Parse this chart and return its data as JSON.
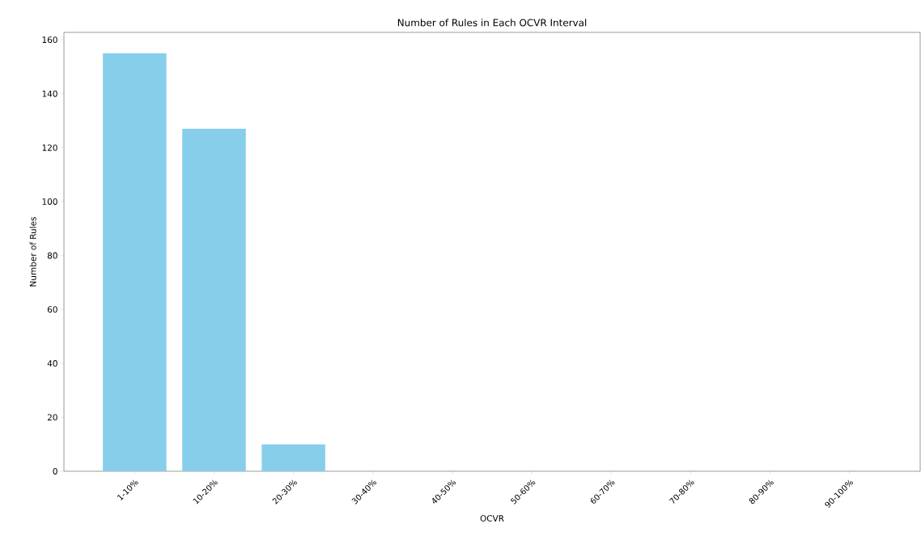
{
  "chart_data": {
    "type": "bar",
    "title": "Number of Rules in Each OCVR Interval",
    "xlabel": "OCVR",
    "ylabel": "Number of Rules",
    "categories": [
      "1-10%",
      "10-20%",
      "20-30%",
      "30-40%",
      "40-50%",
      "50-60%",
      "60-70%",
      "70-80%",
      "80-90%",
      "90-100%"
    ],
    "values": [
      155,
      127,
      10,
      0,
      0,
      0,
      0,
      0,
      0,
      0
    ],
    "color": "#87ceeb",
    "ylim": [
      0,
      162.75
    ],
    "yticks": [
      0,
      20,
      40,
      60,
      80,
      100,
      120,
      140,
      160
    ],
    "grid": false
  }
}
